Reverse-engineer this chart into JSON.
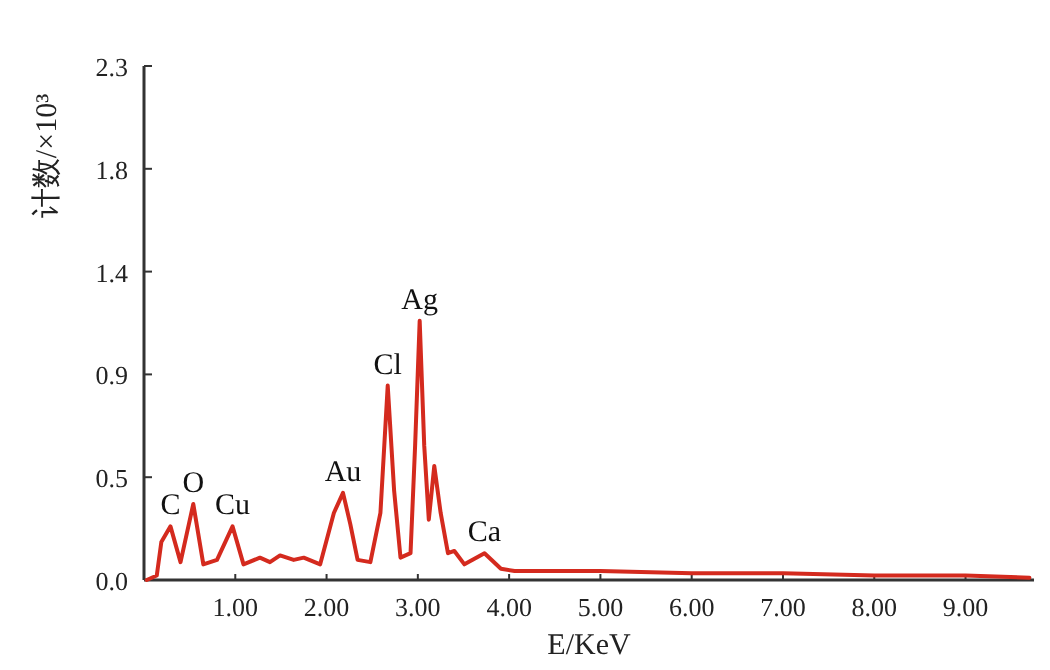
{
  "chart_data": {
    "type": "line",
    "xlabel": "E/KeV",
    "ylabel": "计数/×10³",
    "xlim": [
      0,
      9.75
    ],
    "ylim": [
      0,
      2.3
    ],
    "xticks": [
      {
        "value": 1,
        "label": "1.00"
      },
      {
        "value": 2,
        "label": "2.00"
      },
      {
        "value": 3,
        "label": "3.00"
      },
      {
        "value": 4,
        "label": "4.00"
      },
      {
        "value": 5,
        "label": "5.00"
      },
      {
        "value": 6,
        "label": "6.00"
      },
      {
        "value": 7,
        "label": "7.00"
      },
      {
        "value": 8,
        "label": "8.00"
      },
      {
        "value": 9,
        "label": "9.00"
      }
    ],
    "yticks": [
      {
        "value": 0,
        "label": "0.0"
      },
      {
        "value": 0.46,
        "label": "0.5"
      },
      {
        "value": 0.92,
        "label": "0.9"
      },
      {
        "value": 1.38,
        "label": "1.4"
      },
      {
        "value": 1.84,
        "label": "1.8"
      },
      {
        "value": 2.3,
        "label": "2.3"
      }
    ],
    "marker": "none",
    "line_style": "solid",
    "series": [
      {
        "color": "#d42a1e",
        "x": [
          0.03,
          0.14,
          0.19,
          0.29,
          0.4,
          0.54,
          0.65,
          0.8,
          0.97,
          1.09,
          1.27,
          1.38,
          1.49,
          1.64,
          1.75,
          1.93,
          2.08,
          2.18,
          2.26,
          2.34,
          2.48,
          2.59,
          2.67,
          2.74,
          2.81,
          2.92,
          2.97,
          3.02,
          3.07,
          3.12,
          3.18,
          3.25,
          3.33,
          3.4,
          3.51,
          3.73,
          3.91,
          4.06,
          5.0,
          6.0,
          7.0,
          8.0,
          9.0,
          9.7
        ],
        "values": [
          0.0,
          0.02,
          0.17,
          0.24,
          0.08,
          0.34,
          0.07,
          0.09,
          0.24,
          0.07,
          0.1,
          0.08,
          0.11,
          0.09,
          0.1,
          0.07,
          0.3,
          0.39,
          0.25,
          0.09,
          0.08,
          0.3,
          0.87,
          0.4,
          0.1,
          0.12,
          0.6,
          1.16,
          0.6,
          0.27,
          0.51,
          0.3,
          0.12,
          0.13,
          0.07,
          0.12,
          0.05,
          0.04,
          0.04,
          0.03,
          0.03,
          0.02,
          0.02,
          0.01
        ]
      }
    ],
    "annotations": [
      {
        "text": "C",
        "x": 0.29,
        "y": 0.24
      },
      {
        "text": "O",
        "x": 0.54,
        "y": 0.34
      },
      {
        "text": "Cu",
        "x": 0.97,
        "y": 0.24
      },
      {
        "text": "Au",
        "x": 2.18,
        "y": 0.39
      },
      {
        "text": "Cl",
        "x": 2.67,
        "y": 0.87
      },
      {
        "text": "Ag",
        "x": 3.02,
        "y": 1.16
      },
      {
        "text": "Ca",
        "x": 3.73,
        "y": 0.12
      }
    ]
  }
}
